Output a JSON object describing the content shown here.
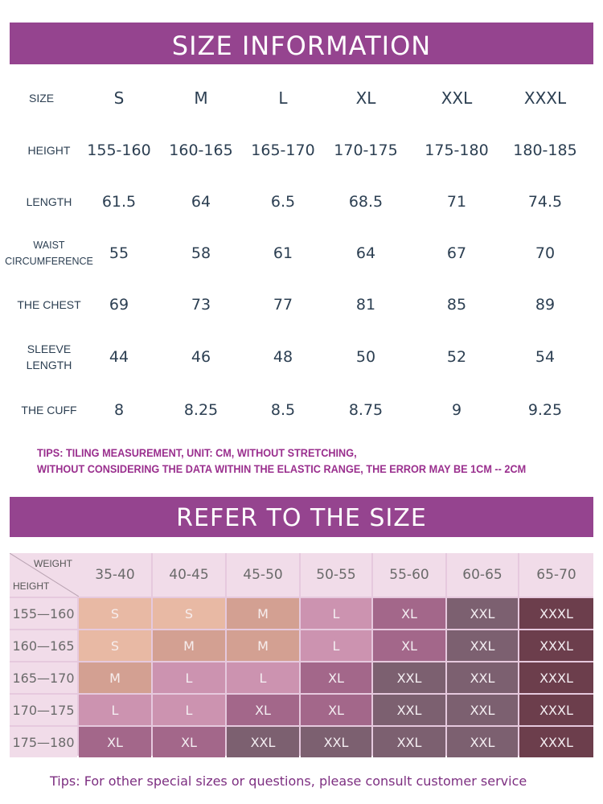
{
  "size_information": {
    "title": "SIZE INFORMATION",
    "rows": [
      {
        "label": [
          "SIZE"
        ],
        "values": [
          "S",
          "M",
          "L",
          "XL",
          "XXL",
          "XXXL"
        ]
      },
      {
        "label": [
          "HEIGHT"
        ],
        "values": [
          "155-160",
          "160-165",
          "165-170",
          "170-175",
          "175-180",
          "180-185"
        ]
      },
      {
        "label": [
          "LENGTH"
        ],
        "values": [
          "61.5",
          "64",
          "6.5",
          "68.5",
          "71",
          "74.5"
        ]
      },
      {
        "label": [
          "WAIST",
          "CIRCUMFERENCE"
        ],
        "values": [
          "55",
          "58",
          "61",
          "64",
          "67",
          "70"
        ]
      },
      {
        "label": [
          "THE CHEST"
        ],
        "values": [
          "69",
          "73",
          "77",
          "81",
          "85",
          "89"
        ]
      },
      {
        "label": [
          "SLEEVE",
          "LENGTH"
        ],
        "values": [
          "44",
          "46",
          "48",
          "50",
          "52",
          "54"
        ]
      },
      {
        "label": [
          "THE CUFF"
        ],
        "values": [
          "8",
          "8.25",
          "8.5",
          "8.75",
          "9",
          "9.25"
        ]
      }
    ],
    "tips_line1": "TIPS: TILING MEASUREMENT, UNIT: CM, WITHOUT STRETCHING,",
    "tips_line2": "WITHOUT CONSIDERING THE DATA WITHIN THE ELASTIC RANGE, THE ERROR MAY BE 1CM -- 2CM"
  },
  "refer_to_size": {
    "title": "REFER TO THE SIZE",
    "corner_weight": "WEIGHT",
    "corner_height": "HEIGHT",
    "weights": [
      "35-40",
      "40-45",
      "45-50",
      "50-55",
      "55-60",
      "60-65",
      "65-70"
    ],
    "heights": [
      "155—160",
      "160—165",
      "165—170",
      "170—175",
      "175—180"
    ],
    "grid": [
      [
        "S",
        "S",
        "M",
        "L",
        "XL",
        "XXL",
        "XXXL"
      ],
      [
        "S",
        "M",
        "M",
        "L",
        "XL",
        "XXL",
        "XXXL"
      ],
      [
        "M",
        "L",
        "L",
        "XL",
        "XXL",
        "XXL",
        "XXXL"
      ],
      [
        "L",
        "L",
        "XL",
        "XL",
        "XXL",
        "XXL",
        "XXXL"
      ],
      [
        "XL",
        "XL",
        "XXL",
        "XXL",
        "XXL",
        "XXL",
        "XXXL"
      ]
    ],
    "size_colors": {
      "S": "#e8b9a4",
      "M": "#d3a092",
      "L": "#cc93b0",
      "XL": "#a3678a",
      "XXL": "#7c6070",
      "XXXL": "#6c3e4c"
    },
    "tips": "Tips: For other special sizes or questions, please consult customer service"
  },
  "colors": {
    "banner": "#95448f",
    "tips_text": "#9a2f8e",
    "table_text": "#2c3f52"
  }
}
